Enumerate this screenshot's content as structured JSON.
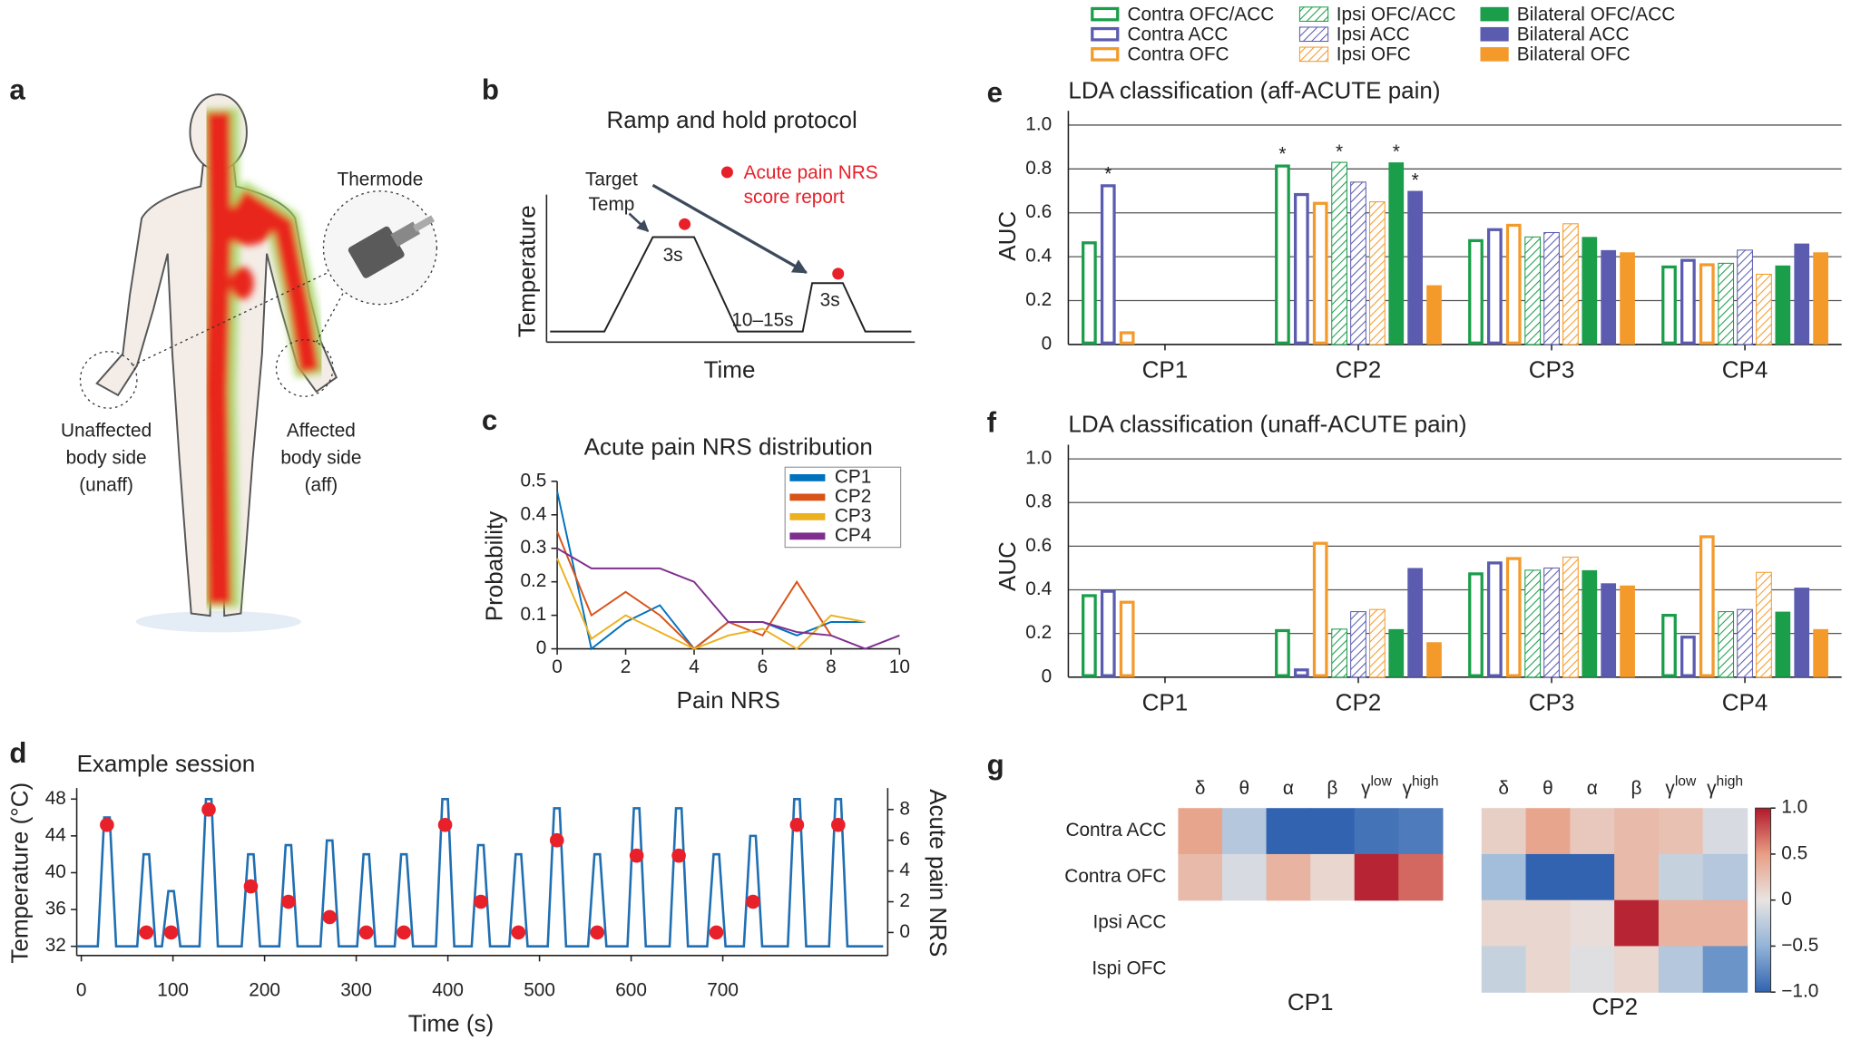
{
  "panel_labels": [
    "a",
    "b",
    "c",
    "d",
    "e",
    "f",
    "g"
  ],
  "illustration": {
    "thermode": "Thermode",
    "unaffected": [
      "Unaffected",
      "body side",
      "(unaff)"
    ],
    "affected": [
      "Affected",
      "body side",
      "(aff)"
    ]
  },
  "protocol": {
    "title": "Ramp and hold protocol",
    "y_label": "Temperature",
    "x_label": "Time",
    "target": [
      "Target",
      "Temp"
    ],
    "report": [
      "Acute pain NRS",
      "score report"
    ],
    "hold_1": "3s",
    "hold_2": "3s",
    "interval": "10–15s"
  },
  "chart_data": [
    {
      "type": "line",
      "title": "Acute pain NRS distribution",
      "x_label": "Pain NRS",
      "y_label": "Probability",
      "x": [
        0,
        1,
        2,
        3,
        4,
        5,
        6,
        7,
        8,
        9,
        10
      ],
      "series": [
        {
          "name": "CP1",
          "color": "#0072bd",
          "values": [
            0.47,
            0,
            0.08,
            0.13,
            0,
            0.08,
            0.08,
            0.04,
            0.08,
            0.08,
            null
          ]
        },
        {
          "name": "CP2",
          "color": "#d95319",
          "values": [
            0.35,
            0.1,
            0.17,
            0.1,
            0,
            0.08,
            0.04,
            0.2,
            0.04,
            null,
            null
          ]
        },
        {
          "name": "CP3",
          "color": "#edb120",
          "values": [
            0.27,
            0.03,
            0.1,
            0.05,
            0,
            0.04,
            0.06,
            0,
            0.1,
            0.08,
            null
          ]
        },
        {
          "name": "CP4",
          "color": "#7e2f8e",
          "values": [
            0.3,
            0.24,
            0.24,
            0.24,
            0.2,
            0.08,
            0.08,
            0.05,
            0.04,
            0,
            0.04
          ]
        }
      ],
      "xlim": [
        0,
        10
      ],
      "xticks": [
        0,
        2,
        4,
        6,
        8,
        10
      ],
      "ylim": [
        0,
        0.5
      ],
      "yticks": [
        0,
        0.1,
        0.2,
        0.3,
        0.4,
        0.5
      ],
      "legend": "upper right"
    },
    {
      "type": "line",
      "title": "Example session",
      "x_label": "Time (s)",
      "y_label": "Temperature (°C)",
      "y2_label": "Acute pain NRS",
      "series": [
        {
          "color": "#1f6fb2",
          "x": [
            -5,
            18,
            25,
            31,
            38,
            61,
            68,
            74,
            81,
            88,
            95,
            101,
            108,
            129,
            136,
            142,
            149,
            175,
            182,
            188,
            195,
            216,
            223,
            229,
            236,
            261,
            268,
            274,
            281,
            301,
            308,
            314,
            321,
            342,
            349,
            355,
            362,
            387,
            394,
            400,
            407,
            426,
            433,
            439,
            446,
            467,
            474,
            480,
            487,
            509,
            516,
            522,
            529,
            553,
            560,
            566,
            573,
            596,
            603,
            609,
            616,
            642,
            649,
            655,
            662,
            683,
            690,
            696,
            703,
            723,
            730,
            736,
            743,
            771,
            778,
            784,
            791,
            816,
            823,
            829,
            836,
            875
          ],
          "values": [
            32,
            32,
            46,
            46,
            32,
            32,
            42,
            42,
            32,
            32,
            38,
            38,
            32,
            32,
            48,
            48,
            32,
            32,
            42,
            42,
            32,
            32,
            43,
            43,
            32,
            32,
            43.5,
            43.5,
            32,
            32,
            42,
            42,
            32,
            32,
            42,
            42,
            32,
            32,
            48,
            48,
            32,
            32,
            43,
            43,
            32,
            32,
            42,
            42,
            32,
            32,
            47,
            47,
            32,
            32,
            42,
            42,
            32,
            32,
            47,
            47,
            32,
            32,
            47,
            47,
            32,
            32,
            42,
            42,
            32,
            32,
            44,
            44,
            32,
            32,
            48,
            48,
            32,
            32,
            48,
            48,
            32,
            32
          ]
        },
        {
          "type": "scatter",
          "axis": "y2",
          "color": "#e8202a",
          "x": [
            28,
            71,
            98,
            139,
            185,
            226,
            271,
            311,
            352,
            397,
            436,
            477,
            519,
            563,
            606,
            652,
            693,
            733,
            781,
            826
          ],
          "values": [
            7,
            0,
            0,
            8,
            3,
            2,
            1,
            0,
            0,
            7,
            2,
            0,
            6,
            0,
            5,
            5,
            0,
            2,
            7,
            7
          ]
        }
      ],
      "xlim": [
        -5,
        880
      ],
      "xticks": [
        0,
        100,
        200,
        300,
        400,
        500,
        600,
        700
      ],
      "ylim": [
        31,
        49.2
      ],
      "yticks": [
        32,
        36,
        40,
        44,
        48
      ],
      "y2lim": [
        -1.5,
        9.4
      ],
      "y2ticks": [
        0,
        2,
        4,
        6,
        8
      ]
    },
    {
      "type": "bar",
      "title": "LDA classification (aff-ACUTE pain)",
      "y_label": "AUC",
      "categories": [
        "CP1",
        "CP2",
        "CP3",
        "CP4"
      ],
      "series": [
        {
          "name": "Contra OFC/ACC",
          "color": "#1a9e4a",
          "style": "outline",
          "values": [
            0.47,
            0.82,
            0.48,
            0.36
          ],
          "annotations": [
            null,
            "*",
            null,
            null
          ]
        },
        {
          "name": "Contra ACC",
          "color": "#5b5bb0",
          "style": "outline",
          "values": [
            0.73,
            0.69,
            0.53,
            0.39
          ],
          "annotations": [
            "*",
            null,
            null,
            null
          ]
        },
        {
          "name": "Contra OFC",
          "color": "#f39a2b",
          "style": "outline",
          "values": [
            0.06,
            0.65,
            0.55,
            0.37
          ]
        },
        {
          "name": "Ipsi OFC/ACC",
          "color": "#1a9e4a",
          "style": "hatch",
          "values": [
            null,
            0.83,
            0.49,
            0.37
          ],
          "annotations": [
            null,
            "*",
            null,
            null
          ]
        },
        {
          "name": "Ipsi ACC",
          "color": "#5b5bb0",
          "style": "hatch",
          "values": [
            null,
            0.74,
            0.51,
            0.43
          ]
        },
        {
          "name": "Ipsi OFC",
          "color": "#f39a2b",
          "style": "hatch",
          "values": [
            null,
            0.65,
            0.55,
            0.32
          ]
        },
        {
          "name": "Bilateral OFC/ACC",
          "color": "#1a9e4a",
          "style": "solid",
          "values": [
            null,
            0.83,
            0.49,
            0.36
          ],
          "annotations": [
            null,
            "*",
            null,
            null
          ]
        },
        {
          "name": "Bilateral ACC",
          "color": "#5b5bb0",
          "style": "solid",
          "values": [
            null,
            0.7,
            0.43,
            0.46
          ],
          "annotations": [
            null,
            "*",
            null,
            null
          ]
        },
        {
          "name": "Bilateral OFC",
          "color": "#f39a2b",
          "style": "solid",
          "values": [
            null,
            0.27,
            0.42,
            0.42
          ]
        }
      ],
      "ylim": [
        0,
        1
      ],
      "yticks": [
        0,
        0.2,
        0.4,
        0.6,
        0.8,
        {
          "value": 1,
          "label": "1.0"
        }
      ],
      "grid": true,
      "legend": "top"
    },
    {
      "type": "bar",
      "title": "LDA classification (unaff-ACUTE pain)",
      "y_label": "AUC",
      "categories": [
        "CP1",
        "CP2",
        "CP3",
        "CP4"
      ],
      "series": [
        {
          "color": "#1a9e4a",
          "style": "outline",
          "values": [
            0.38,
            0.22,
            0.48,
            0.29
          ]
        },
        {
          "color": "#5b5bb0",
          "style": "outline",
          "values": [
            0.4,
            0.04,
            0.53,
            0.19
          ]
        },
        {
          "color": "#f39a2b",
          "style": "outline",
          "values": [
            0.35,
            0.62,
            0.55,
            0.65
          ]
        },
        {
          "color": "#1a9e4a",
          "style": "hatch",
          "values": [
            null,
            0.22,
            0.49,
            0.3
          ]
        },
        {
          "color": "#5b5bb0",
          "style": "hatch",
          "values": [
            null,
            0.3,
            0.5,
            0.31
          ]
        },
        {
          "color": "#f39a2b",
          "style": "hatch",
          "values": [
            null,
            0.31,
            0.55,
            0.48
          ]
        },
        {
          "color": "#1a9e4a",
          "style": "solid",
          "values": [
            null,
            0.22,
            0.49,
            0.3
          ]
        },
        {
          "color": "#5b5bb0",
          "style": "solid",
          "values": [
            null,
            0.5,
            0.43,
            0.41
          ]
        },
        {
          "color": "#f39a2b",
          "style": "solid",
          "values": [
            null,
            0.16,
            0.42,
            0.22
          ]
        }
      ],
      "ylim": [
        0,
        1
      ],
      "yticks": [
        0,
        0.2,
        0.4,
        0.6,
        0.8,
        {
          "value": 1,
          "label": "1.0"
        }
      ],
      "grid": true
    },
    {
      "type": "heatmap",
      "title": "CP1",
      "columns": [
        "δ",
        "θ",
        "α",
        "β",
        "γ",
        "γ"
      ],
      "column_sups": [
        null,
        null,
        null,
        null,
        "low",
        "high"
      ],
      "values": [
        [
          0.45,
          -0.3,
          -1,
          -1,
          -0.9,
          -0.85
        ],
        [
          0.3,
          -0.1,
          0.35,
          0.1,
          0.95,
          0.7
        ]
      ],
      "colormap": "RdBu_r",
      "clim": [
        -1,
        1
      ]
    },
    {
      "type": "heatmap",
      "title": "CP2",
      "columns": [
        "δ",
        "θ",
        "α",
        "β",
        "γ",
        "γ"
      ],
      "column_sups": [
        null,
        null,
        null,
        null,
        "low",
        "high"
      ],
      "rows": [
        "Contra ACC",
        "Contra OFC",
        "Ipsi ACC",
        "Ispi OFC"
      ],
      "values": [
        [
          0.15,
          0.45,
          0.2,
          0.3,
          0.25,
          -0.1
        ],
        [
          -0.4,
          -1,
          -1,
          0.3,
          -0.2,
          -0.3
        ],
        [
          0.1,
          0.1,
          0.05,
          0.95,
          0.35,
          0.35
        ],
        [
          -0.2,
          0.1,
          -0.05,
          0.1,
          -0.3,
          -0.7
        ]
      ],
      "colormap": "RdBu_r",
      "clim": [
        -1,
        1
      ],
      "cticks": [
        {
          "value": 1,
          "label": "1.0"
        },
        0.5,
        0,
        {
          "value": -0.5,
          "label": "−0.5"
        },
        {
          "value": -1,
          "label": "−1.0"
        }
      ]
    }
  ]
}
